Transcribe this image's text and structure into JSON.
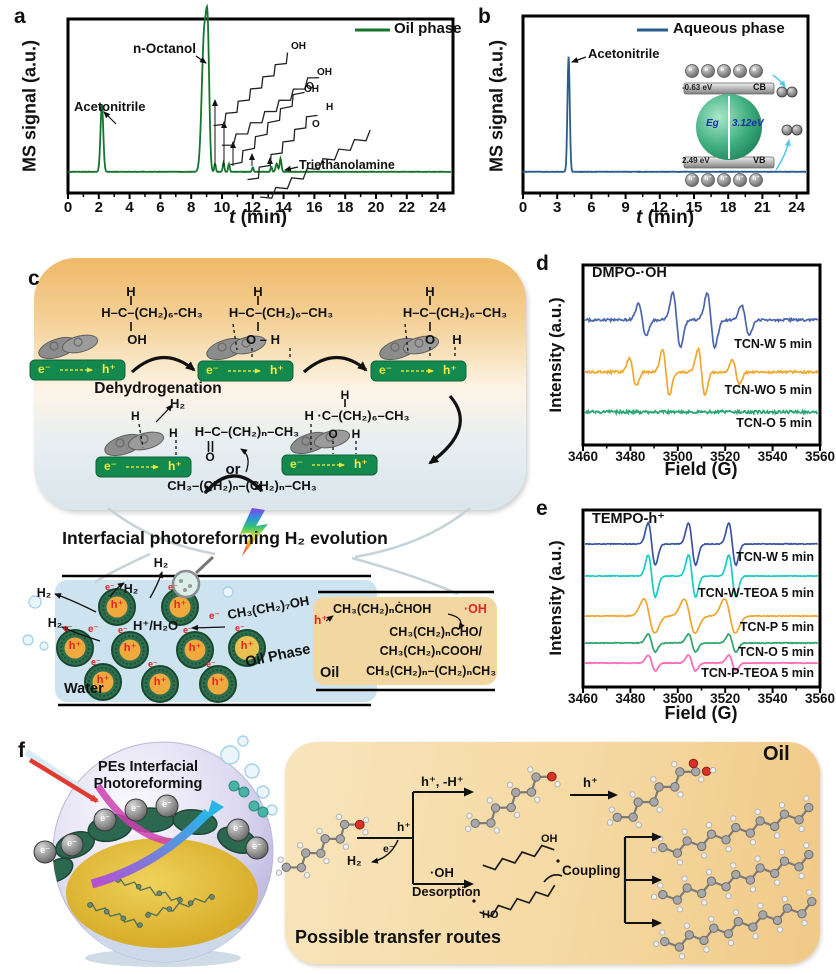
{
  "panel_a": {
    "label": "a",
    "ylabel": "MS signal (a.u.)",
    "xlabel_t": "t",
    "xlabel_rest": " (min)",
    "structures": [
      {
        "end": "OH"
      },
      {
        "end": "OH",
        "sub": "O"
      },
      {
        "end": "OH"
      },
      {
        "end": "H",
        "sub": "O"
      },
      {
        "end": ""
      }
    ]
  },
  "panel_b": {
    "label": "b",
    "ylabel": "MS signal (a.u.)",
    "xlabel_t": "t",
    "xlabel_rest": " (min)",
    "inset": {
      "cb_ev": "-0.63 eV",
      "cb": "CB",
      "vb_ev": "2.49 eV",
      "vb": "VB",
      "eg": "Eg",
      "gap": "3.12eV",
      "e": "e⁻",
      "h": "h⁺"
    }
  },
  "panel_c": {
    "label": "c",
    "mol1": {
      "h": "H",
      "chain": "H–C–(CH₂)₆-CH₃",
      "oh": "OH"
    },
    "mol2": {
      "h": "H",
      "chain": "H–C–(CH₂)₆–CH₃",
      "o": "O – H"
    },
    "mol3": {
      "h": "H",
      "chain": "H–C–(CH₂)₆–CH₃",
      "o": "O",
      "h2": "H"
    },
    "dehydrogenation": "Dehydrogenation",
    "h2": "H₂",
    "h": "H",
    "h_2": "H",
    "aldehyde": "H–C–(CH₂)ₙ–CH₃",
    "aldehyde_o": "O",
    "or": "or",
    "alkane": "CH₃–(CH₂)ₙ–(CH₂)ₙ–CH₃",
    "mol5": {
      "h": "H",
      "chain": "H ·C–(CH₂)₆–CH₃",
      "o": "O",
      "h2": "H"
    },
    "bar_e": "e⁻",
    "bar_arrow": "⇢",
    "bar_h": "h⁺",
    "heading": "Interfacial photoreforming H₂ evolution",
    "water": {
      "label": "Water",
      "h2": "H₂",
      "h_h2o": "H⁺/H₂O",
      "e": "e⁻",
      "octanol": "CH₃(CH₂)₇OH",
      "oil_phase": "Oil Phase",
      "particle_h": "h⁺",
      "particle_e": "e⁻"
    },
    "oil": {
      "h": "h⁺",
      "line1": "CH₃(CH₂)ₙĊHOH",
      "oh": "·OH",
      "line2": "CH₃(CH₂)ₙCHO/",
      "line3": "CH₃(CH₂)ₙCOOH/",
      "line4": "CH₃(CH₂)ₙ–(CH₂)ₙCH₃",
      "label": "Oil"
    }
  },
  "panel_d": {
    "label": "d"
  },
  "panel_e": {
    "label": "e"
  },
  "panel_f": {
    "label": "f",
    "sphere_line1": "PEs Interfacial",
    "sphere_line2": "Photoreforming",
    "e": "e⁻",
    "oil": "Oil",
    "routes": "Possible transfer routes",
    "h_minus": "h⁺, -H⁺",
    "h_stem": "h⁺",
    "h2": "H₂",
    "e_stem": "e⁻",
    "oh": "·OH",
    "desorption": "Desorption",
    "h_mid": "h⁺",
    "coupling": "Coupling",
    "oh_a": "OH",
    "ho_b": "HO"
  },
  "chart_data": [
    {
      "id": "a",
      "type": "line",
      "legend": "Oil phase",
      "color": "#17742d",
      "xlabel": "t (min)",
      "ylabel": "MS signal (a.u.)",
      "xlim": [
        0,
        25
      ],
      "xticks": [
        0,
        2,
        4,
        6,
        8,
        10,
        12,
        14,
        16,
        18,
        20,
        22,
        24
      ],
      "grid": false,
      "legend_position": "top-right",
      "peaks": [
        {
          "t": 2.2,
          "h": 0.46,
          "w": 0.09,
          "label": "Acetonitrile"
        },
        {
          "t": 8.85,
          "h": 0.95,
          "w": 0.16,
          "label": "n-Octanol"
        },
        {
          "t": 9.08,
          "h": 0.7,
          "w": 0.1
        },
        {
          "t": 9.55,
          "h": 0.055,
          "w": 0.05
        },
        {
          "t": 10.1,
          "h": 0.065,
          "w": 0.05
        },
        {
          "t": 10.45,
          "h": 0.055,
          "w": 0.05
        },
        {
          "t": 12.0,
          "h": 0.03,
          "w": 0.05
        },
        {
          "t": 13.2,
          "h": 0.035,
          "w": 0.05
        },
        {
          "t": 13.55,
          "h": 0.055,
          "w": 0.07
        },
        {
          "t": 13.8,
          "h": 0.09,
          "w": 0.06,
          "label": "Triethanolamine"
        }
      ]
    },
    {
      "id": "b",
      "type": "line",
      "legend": "Aqueous phase",
      "color": "#2a5d8c",
      "xlabel": "t (min)",
      "ylabel": "MS signal (a.u.)",
      "xlim": [
        0,
        25
      ],
      "xticks": [
        0,
        3,
        6,
        9,
        12,
        15,
        18,
        21,
        24
      ],
      "grid": false,
      "legend_position": "top-right",
      "peaks": [
        {
          "t": 4.0,
          "h": 0.77,
          "w": 0.1,
          "label": "Acetonitrile"
        }
      ]
    },
    {
      "id": "d",
      "type": "line",
      "title": "DMPO-·OH",
      "xlabel": "Field (G)",
      "ylabel": "Intensity (a.u.)",
      "xlim": [
        3460,
        3560
      ],
      "xticks": [
        3460,
        3480,
        3500,
        3520,
        3540,
        3560
      ],
      "grid": false,
      "series": [
        {
          "label": "TCN-W 5 min",
          "color": "#4a66ad",
          "centers_G": [
            3485,
            3499.5,
            3514,
            3528.5
          ],
          "rel_amps": [
            0.6,
            1,
            1,
            0.55
          ],
          "amp": 27,
          "width_G": 1.6,
          "noise": 1.2
        },
        {
          "label": "TCN-WO 5 min",
          "color": "#f0a72b",
          "centers_G": [
            3481,
            3495,
            3510,
            3524.5
          ],
          "rel_amps": [
            0.6,
            1,
            1,
            0.55
          ],
          "amp": 23,
          "width_G": 1.45,
          "noise": 1.2
        },
        {
          "label": "TCN-O 5 min",
          "color": "#2aa573",
          "centers_G": [],
          "rel_amps": [],
          "amp": 0,
          "width_G": 1.5,
          "noise": 1.5
        }
      ]
    },
    {
      "id": "e",
      "type": "line",
      "title": "TEMPO-h⁺",
      "xlabel": "Field (G)",
      "ylabel": "Intensity (a.u.)",
      "xlim": [
        3460,
        3560
      ],
      "xticks": [
        3460,
        3480,
        3500,
        3520,
        3540,
        3560
      ],
      "grid": false,
      "series": [
        {
          "label": "TCN-W 5 min",
          "color": "#3b54a0",
          "centers_G": [
            3489,
            3506,
            3523
          ],
          "rel_amps": [
            1,
            1,
            1
          ],
          "amp": 21,
          "width_G": 1.5,
          "noise": 0.4
        },
        {
          "label": "TCN-W-TEOA 5 min",
          "color": "#18cbc4",
          "centers_G": [
            3489,
            3506,
            3523
          ],
          "rel_amps": [
            1,
            1,
            1
          ],
          "amp": 21,
          "width_G": 1.5,
          "noise": 0.4
        },
        {
          "label": "TCN-P 5 min",
          "color": "#f0a72b",
          "centers_G": [
            3488,
            3505,
            3522
          ],
          "rel_amps": [
            1,
            1,
            1
          ],
          "amp": 17,
          "width_G": 2.3,
          "noise": 0.4
        },
        {
          "label": "TCN-O 5 min",
          "color": "#2fa46b",
          "centers_G": [
            3489,
            3506,
            3523
          ],
          "rel_amps": [
            1,
            1,
            1
          ],
          "amp": 9,
          "width_G": 1.5,
          "noise": 0.4
        },
        {
          "label": "TCN-P-TEOA 5 min",
          "color": "#ff69b4",
          "centers_G": [
            3489,
            3506,
            3523
          ],
          "rel_amps": [
            1,
            1,
            1
          ],
          "amp": 8,
          "width_G": 1.5,
          "noise": 0.4
        }
      ]
    }
  ]
}
